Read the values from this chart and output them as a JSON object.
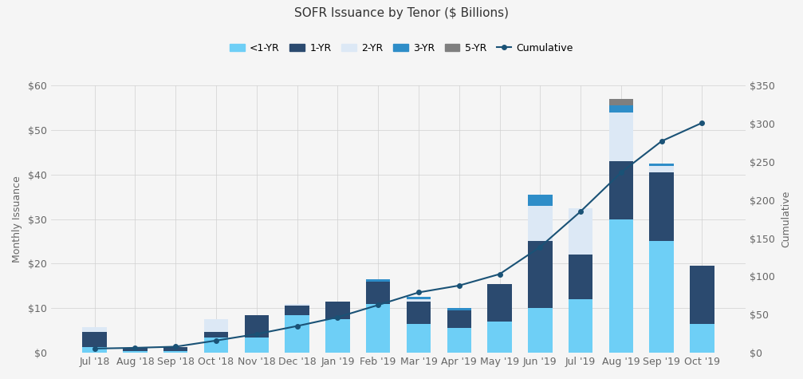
{
  "title": "SOFR Issuance by Tenor ($ Billions)",
  "months": [
    "Jul '18",
    "Aug '18",
    "Sep '18",
    "Oct '18",
    "Nov '18",
    "Dec '18",
    "Jan '19",
    "Feb '19",
    "Mar '19",
    "Apr '19",
    "May '19",
    "Jun '19",
    "Jul '19",
    "Aug '19",
    "Sep '19",
    "Oct '19"
  ],
  "lt1yr": [
    1.2,
    0.3,
    0.4,
    3.5,
    3.5,
    8.5,
    7.5,
    11.0,
    6.5,
    5.5,
    7.0,
    10.0,
    12.0,
    30.0,
    25.0,
    6.5
  ],
  "yr1": [
    3.5,
    0.8,
    0.8,
    1.2,
    5.0,
    2.0,
    4.0,
    5.0,
    5.0,
    4.0,
    8.5,
    15.0,
    10.0,
    13.0,
    15.5,
    13.0
  ],
  "yr2": [
    1.0,
    0.0,
    0.0,
    2.8,
    0.0,
    0.5,
    0.0,
    0.0,
    0.5,
    0.0,
    0.0,
    8.0,
    10.5,
    11.0,
    1.5,
    0.0
  ],
  "yr3": [
    0.0,
    0.0,
    0.0,
    0.0,
    0.0,
    0.0,
    0.0,
    0.5,
    0.5,
    0.5,
    0.0,
    2.5,
    0.0,
    1.5,
    0.5,
    0.0
  ],
  "yr5": [
    0.0,
    0.0,
    0.0,
    0.0,
    0.0,
    0.0,
    0.0,
    0.0,
    0.0,
    0.0,
    0.0,
    0.0,
    0.0,
    1.5,
    0.0,
    0.0
  ],
  "cumulative": [
    5.5,
    6.5,
    8.0,
    16.0,
    24.5,
    35.0,
    46.5,
    62.5,
    79.0,
    88.0,
    103.0,
    138.5,
    185.0,
    236.0,
    277.0,
    301.0
  ],
  "color_lt1yr": "#6ECFF6",
  "color_1yr": "#2B4A6F",
  "color_2yr": "#DCE8F5",
  "color_3yr": "#2E8DC8",
  "color_5yr": "#7F7F7F",
  "color_cumulative": "#1A5276",
  "color_grid": "#D0D0D0",
  "background_color": "#F5F5F5",
  "plot_bg_color": "#F5F5F5",
  "ylabel_left": "Monthly Issuance",
  "ylabel_right": "Cumulative",
  "ylim_left": [
    0,
    60
  ],
  "ylim_right": [
    0,
    350
  ],
  "yticks_left": [
    0,
    10,
    20,
    30,
    40,
    50,
    60
  ],
  "ytick_labels_left": [
    "$0",
    "$10",
    "$20",
    "$30",
    "$40",
    "$50",
    "$60"
  ],
  "yticks_right": [
    0,
    50,
    100,
    150,
    200,
    250,
    300,
    350
  ],
  "ytick_labels_right": [
    "$0",
    "$50",
    "$100",
    "$150",
    "$200",
    "$250",
    "$300",
    "$350"
  ],
  "legend_labels": [
    "<1-YR",
    "1-YR",
    "2-YR",
    "3-YR",
    "5-YR",
    "Cumulative"
  ]
}
